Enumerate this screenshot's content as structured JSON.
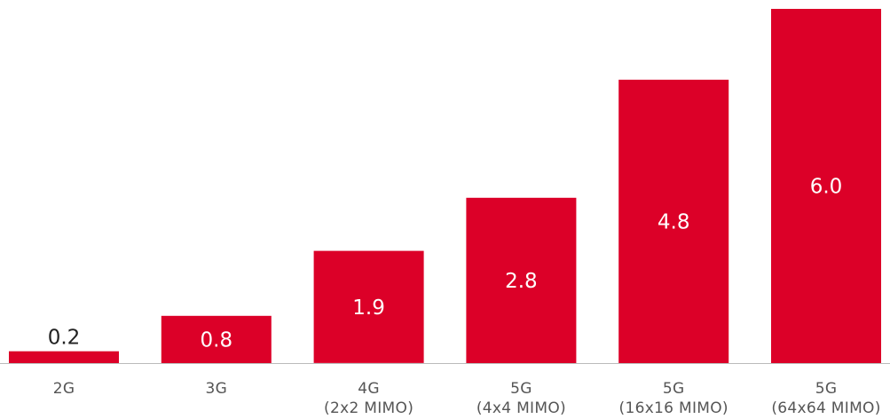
{
  "chart_data": {
    "type": "bar",
    "title": "",
    "xlabel": "",
    "ylabel": "",
    "ylim": [
      0,
      6.0
    ],
    "grid": false,
    "legend": "none",
    "categories": [
      [
        "2G"
      ],
      [
        "3G"
      ],
      [
        "4G",
        "(2x2 MIMO)"
      ],
      [
        "5G",
        "(4x4 MIMO)"
      ],
      [
        "5G",
        "(16x16 MIMO)"
      ],
      [
        "5G",
        "(64x64 MIMO)"
      ]
    ],
    "values": [
      0.2,
      0.8,
      1.9,
      2.8,
      4.8,
      6.0
    ],
    "value_labels": [
      "0.2",
      "0.8",
      "1.9",
      "2.8",
      "4.8",
      "6.0"
    ],
    "colors": {
      "bar": "#dc0028",
      "label_inside": "#ffffff",
      "label_outside": "#222222",
      "axis_line": "#bbbbbb",
      "category_text": "#555555"
    }
  }
}
